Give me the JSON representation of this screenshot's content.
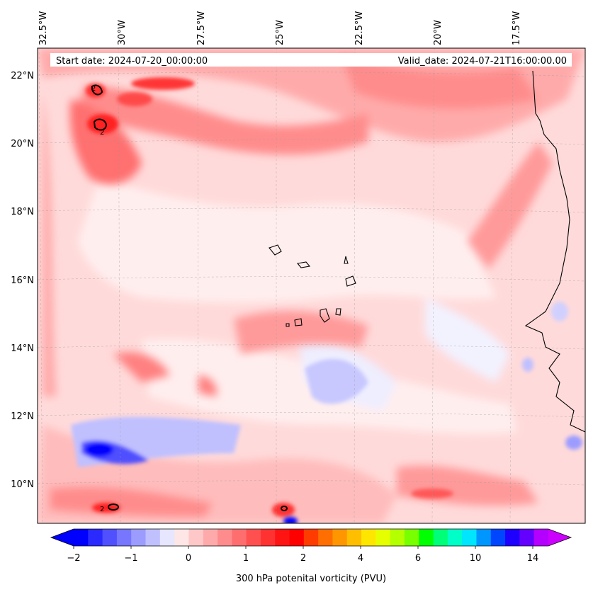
{
  "map": {
    "start_label": "Start date: 2024-07-20_00:00:00",
    "valid_label": "Valid_date: 2024-07-21T16:00:00.00",
    "lon_labels": [
      "32.5°W",
      "30°W",
      "27.5°W",
      "25°W",
      "22.5°W",
      "20°W",
      "17.5°W"
    ],
    "lat_labels": [
      "22°N",
      "20°N",
      "18°N",
      "16°N",
      "14°N",
      "12°N",
      "10°N"
    ],
    "contour_labels": [
      "2",
      "2",
      "2"
    ]
  },
  "colorbar": {
    "title": "300 hPa potenital vorticity (PVU)",
    "tick_labels": [
      "−2",
      "−1",
      "0",
      "1",
      "2",
      "4",
      "6",
      "10",
      "14"
    ],
    "colors": [
      "#0000ff",
      "#2a2aff",
      "#5050ff",
      "#7676ff",
      "#9c9cff",
      "#c0c0ff",
      "#e6e6ff",
      "#ffe6e6",
      "#ffc8c8",
      "#ffaaaa",
      "#ff8c8c",
      "#ff6e6e",
      "#ff5050",
      "#ff3232",
      "#ff1414",
      "#ff0000",
      "#ff3c00",
      "#ff6e00",
      "#ff9600",
      "#ffbe00",
      "#ffe600",
      "#e6ff00",
      "#b4ff00",
      "#78ff00",
      "#00ff00",
      "#00ff78",
      "#00ffc8",
      "#00e6ff",
      "#0096ff",
      "#0046ff",
      "#1e00ff",
      "#6400ff",
      "#b400ff"
    ],
    "left_extend_color": "#0000ff",
    "right_extend_color": "#cc00ff"
  }
}
